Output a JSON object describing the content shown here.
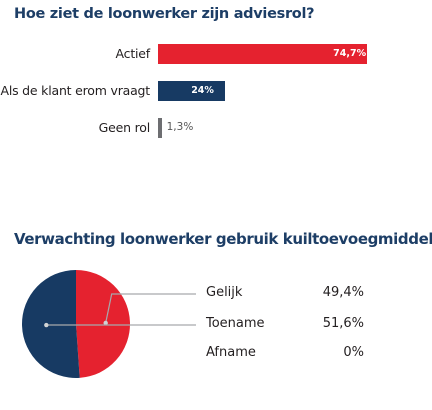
{
  "chart_data": [
    {
      "type": "bar",
      "orientation": "horizontal",
      "title": "Hoe ziet de loonwerker zijn adviesrol?",
      "categories": [
        "Actief",
        "Als de klant erom vraagt",
        "Geen rol"
      ],
      "values": [
        74.7,
        24,
        1.3
      ],
      "value_labels": [
        "74,7%",
        "24%",
        "1,3%"
      ],
      "colors": [
        "#e5222f",
        "#173a63",
        "#6d6e71"
      ],
      "xlim": [
        0,
        100
      ],
      "grid": false,
      "legend": "none"
    },
    {
      "type": "pie",
      "title": "Verwachting loonwerker gebruik kuiltoevoegmiddelen",
      "categories": [
        "Gelijk",
        "Toename",
        "Afname"
      ],
      "values": [
        49.4,
        51.6,
        0
      ],
      "value_labels": [
        "49,4%",
        "51,6%",
        "0%"
      ],
      "colors": [
        "#e5222f",
        "#173a63",
        "#6d6e71"
      ],
      "legend": "right"
    }
  ]
}
